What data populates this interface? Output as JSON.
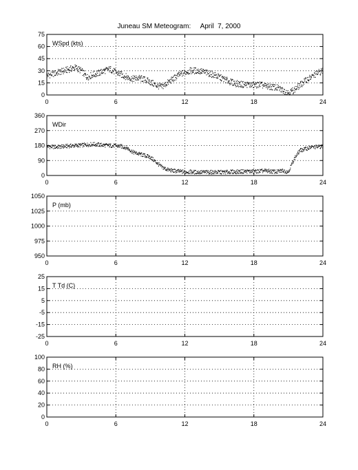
{
  "title": {
    "station": "Juneau SM Meteogram:",
    "date": "April  7, 2000"
  },
  "chart_data": [
    {
      "type": "scatter",
      "label": "WSpd (kts)",
      "xlim": [
        0,
        24
      ],
      "ylim": [
        0,
        75
      ],
      "x_ticks": [
        0,
        6,
        12,
        18,
        24
      ],
      "y_ticks": [
        0,
        15,
        30,
        45,
        60,
        75
      ],
      "grid": true,
      "series": [
        {
          "x": [
            0,
            0.5,
            1,
            1.5,
            2,
            2.5,
            3,
            3.5,
            4,
            4.5,
            5,
            5.5,
            6,
            6.5,
            7,
            7.5,
            8,
            8.5,
            9,
            9.5,
            10,
            10.5,
            11,
            11.5,
            12,
            12.5,
            13,
            13.5,
            14,
            14.5,
            15,
            15.5,
            16,
            16.5,
            17,
            17.5,
            18,
            18.5,
            19,
            19.5,
            20,
            20.5,
            21,
            21.5,
            22,
            22.5,
            23,
            23.5,
            24
          ],
          "y": [
            24,
            26,
            28,
            30,
            32,
            34,
            30,
            22,
            25,
            27,
            30,
            32,
            28,
            25,
            22,
            20,
            21,
            19,
            16,
            12,
            10,
            15,
            20,
            25,
            28,
            30,
            30,
            29,
            27,
            25,
            22,
            19,
            16,
            14,
            13,
            13,
            12,
            13,
            11,
            10,
            9,
            6,
            3,
            6,
            12,
            18,
            22,
            27,
            30
          ]
        }
      ]
    },
    {
      "type": "scatter",
      "label": "WDir",
      "xlim": [
        0,
        24
      ],
      "ylim": [
        0,
        360
      ],
      "x_ticks": [
        0,
        6,
        12,
        18,
        24
      ],
      "y_ticks": [
        0,
        90,
        180,
        270,
        360
      ],
      "grid": true,
      "series": [
        {
          "x": [
            0,
            0.5,
            1,
            1.5,
            2,
            2.5,
            3,
            3.5,
            4,
            4.5,
            5,
            5.5,
            6,
            6.5,
            7,
            7.5,
            8,
            8.5,
            9,
            9.5,
            10,
            10.5,
            11,
            11.5,
            12,
            12.5,
            13,
            13.5,
            14,
            14.5,
            15,
            15.5,
            16,
            16.5,
            17,
            17.5,
            18,
            18.5,
            19,
            19.5,
            20,
            20.5,
            21,
            21.5,
            22,
            22.5,
            23,
            23.5,
            24
          ],
          "y": [
            175,
            172,
            172,
            175,
            178,
            180,
            182,
            185,
            188,
            185,
            182,
            180,
            178,
            175,
            165,
            140,
            130,
            120,
            110,
            80,
            50,
            35,
            28,
            25,
            22,
            22,
            20,
            20,
            20,
            20,
            20,
            20,
            22,
            22,
            24,
            25,
            24,
            26,
            28,
            25,
            22,
            30,
            22,
            100,
            150,
            160,
            170,
            172,
            175
          ]
        }
      ]
    },
    {
      "type": "scatter",
      "label": "P (mb)",
      "xlim": [
        0,
        24
      ],
      "ylim": [
        950,
        1050
      ],
      "x_ticks": [
        0,
        6,
        12,
        18,
        24
      ],
      "y_ticks": [
        950,
        975,
        1000,
        1025,
        1050
      ],
      "grid": true,
      "series": []
    },
    {
      "type": "scatter",
      "label": "T Td (C)",
      "xlim": [
        0,
        24
      ],
      "ylim": [
        -25,
        25
      ],
      "x_ticks": [
        0,
        6,
        12,
        18,
        24
      ],
      "y_ticks": [
        -25,
        -15,
        -5,
        5,
        15,
        25
      ],
      "grid": true,
      "series": []
    },
    {
      "type": "scatter",
      "label": "RH (%)",
      "xlim": [
        0,
        24
      ],
      "ylim": [
        0,
        100
      ],
      "x_ticks": [
        0,
        6,
        12,
        18,
        24
      ],
      "y_ticks": [
        0,
        20,
        40,
        60,
        80,
        100
      ],
      "grid": true,
      "series": []
    }
  ]
}
